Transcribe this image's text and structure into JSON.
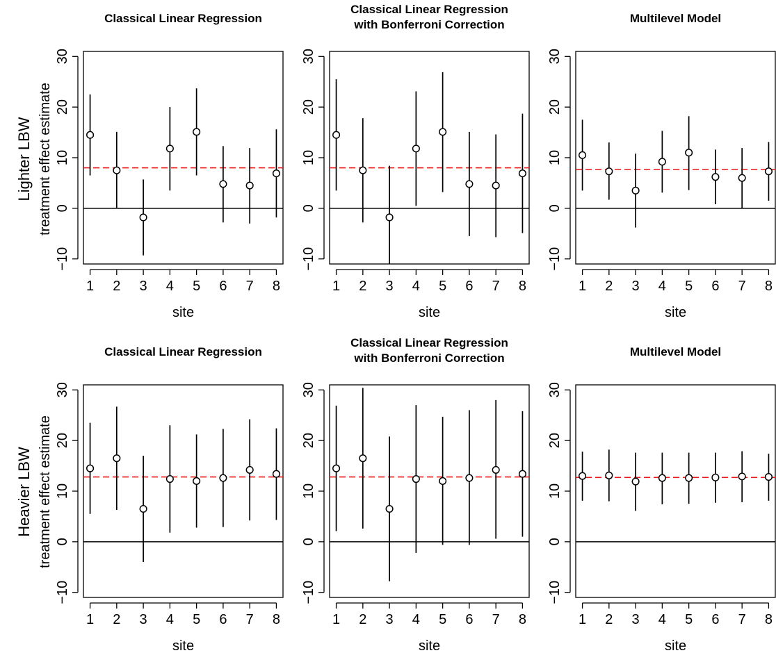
{
  "figure": {
    "row_labels": [
      "Lighter LBW",
      "Heavier LBW"
    ],
    "ylabel": "treatment effect estimate",
    "xlabel": "site"
  },
  "chart_data": [
    {
      "type": "scatter",
      "row": 0,
      "col": 0,
      "title_lines": [
        "Classical Linear Regression"
      ],
      "xlabel": "site",
      "ylabel": "treatment effect estimate",
      "ylim": [
        -11,
        31
      ],
      "yticks": [
        -10,
        0,
        10,
        20,
        30
      ],
      "xticks": [
        1,
        2,
        3,
        4,
        5,
        6,
        7,
        8
      ],
      "reference_line": 0,
      "average_line": 8,
      "x": [
        1,
        2,
        3,
        4,
        5,
        6,
        7,
        8
      ],
      "estimate": [
        14.5,
        7.5,
        -1.8,
        11.8,
        15.1,
        4.8,
        4.5,
        6.9
      ],
      "lower": [
        6.5,
        0,
        -9.3,
        3.5,
        6.5,
        -2.8,
        -3,
        -1.8
      ],
      "upper": [
        22.5,
        15.1,
        5.7,
        20,
        23.7,
        12.3,
        11.9,
        15.6
      ]
    },
    {
      "type": "scatter",
      "row": 0,
      "col": 1,
      "title_lines": [
        "Classical Linear Regression",
        "with Bonferroni Correction"
      ],
      "xlabel": "site",
      "ylabel": "treatment effect estimate",
      "ylim": [
        -11,
        31
      ],
      "yticks": [
        -10,
        0,
        10,
        20,
        30
      ],
      "xticks": [
        1,
        2,
        3,
        4,
        5,
        6,
        7,
        8
      ],
      "reference_line": 0,
      "average_line": 8,
      "x": [
        1,
        2,
        3,
        4,
        5,
        6,
        7,
        8
      ],
      "estimate": [
        14.5,
        7.5,
        -1.8,
        11.8,
        15.1,
        4.8,
        4.5,
        6.9
      ],
      "lower": [
        3.5,
        -2.8,
        -11.5,
        0.5,
        3.2,
        -5.5,
        -5.7,
        -4.9
      ],
      "upper": [
        25.5,
        17.8,
        8.4,
        23.1,
        26.9,
        15.1,
        14.6,
        18.7
      ]
    },
    {
      "type": "scatter",
      "row": 0,
      "col": 2,
      "title_lines": [
        "Multilevel Model"
      ],
      "xlabel": "site",
      "ylabel": "treatment effect estimate",
      "ylim": [
        -11,
        31
      ],
      "yticks": [
        -10,
        0,
        10,
        20,
        30
      ],
      "xticks": [
        1,
        2,
        3,
        4,
        5,
        6,
        7,
        8
      ],
      "reference_line": 0,
      "average_line": 7.7,
      "x": [
        1,
        2,
        3,
        4,
        5,
        6,
        7,
        8
      ],
      "estimate": [
        10.5,
        7.3,
        3.5,
        9.2,
        11,
        6.2,
        6,
        7.3
      ],
      "lower": [
        3.5,
        1.7,
        -3.8,
        3.1,
        3.6,
        0.8,
        0,
        1.5
      ],
      "upper": [
        17.5,
        13,
        10.8,
        15.3,
        18.2,
        11.6,
        11.9,
        13.1
      ]
    },
    {
      "type": "scatter",
      "row": 1,
      "col": 0,
      "title_lines": [
        "Classical Linear Regression"
      ],
      "xlabel": "site",
      "ylabel": "treatment effect estimate",
      "ylim": [
        -11,
        31
      ],
      "yticks": [
        -10,
        0,
        10,
        20,
        30
      ],
      "xticks": [
        1,
        2,
        3,
        4,
        5,
        6,
        7,
        8
      ],
      "reference_line": 0,
      "average_line": 12.8,
      "x": [
        1,
        2,
        3,
        4,
        5,
        6,
        7,
        8
      ],
      "estimate": [
        14.5,
        16.5,
        6.5,
        12.4,
        12,
        12.6,
        14.2,
        13.4
      ],
      "lower": [
        5.5,
        6.3,
        -4,
        1.8,
        2.8,
        2.9,
        4.2,
        4.3
      ],
      "upper": [
        23.5,
        26.7,
        17,
        23,
        21.2,
        22.3,
        24.2,
        22.4
      ]
    },
    {
      "type": "scatter",
      "row": 1,
      "col": 1,
      "title_lines": [
        "Classical Linear Regression",
        "with Bonferroni Correction"
      ],
      "xlabel": "site",
      "ylabel": "treatment effect estimate",
      "ylim": [
        -11,
        31
      ],
      "yticks": [
        -10,
        0,
        10,
        20,
        30
      ],
      "xticks": [
        1,
        2,
        3,
        4,
        5,
        6,
        7,
        8
      ],
      "reference_line": 0,
      "average_line": 12.8,
      "x": [
        1,
        2,
        3,
        4,
        5,
        6,
        7,
        8
      ],
      "estimate": [
        14.5,
        16.5,
        6.5,
        12.4,
        12,
        12.6,
        14.2,
        13.4
      ],
      "lower": [
        2.1,
        2.6,
        -7.8,
        -2.2,
        -0.6,
        -0.6,
        0.6,
        1
      ],
      "upper": [
        26.9,
        30.4,
        20.8,
        27,
        24.7,
        26,
        28,
        25.8
      ]
    },
    {
      "type": "scatter",
      "row": 1,
      "col": 2,
      "title_lines": [
        "Multilevel Model"
      ],
      "xlabel": "site",
      "ylabel": "treatment effect estimate",
      "ylim": [
        -11,
        31
      ],
      "yticks": [
        -10,
        0,
        10,
        20,
        30
      ],
      "xticks": [
        1,
        2,
        3,
        4,
        5,
        6,
        7,
        8
      ],
      "reference_line": 0,
      "average_line": 12.7,
      "x": [
        1,
        2,
        3,
        4,
        5,
        6,
        7,
        8
      ],
      "estimate": [
        13,
        13.1,
        11.9,
        12.6,
        12.6,
        12.7,
        12.9,
        12.8
      ],
      "lower": [
        8.1,
        8,
        6.1,
        7.4,
        7.5,
        7.7,
        7.8,
        8.1
      ],
      "upper": [
        17.8,
        18.2,
        17.6,
        17.6,
        17.6,
        17.6,
        17.9,
        17.4
      ]
    }
  ],
  "colors": {
    "points": "#000000",
    "intervals": "#000000",
    "average_line": "#e41a1c",
    "reference_line": "#000000"
  }
}
